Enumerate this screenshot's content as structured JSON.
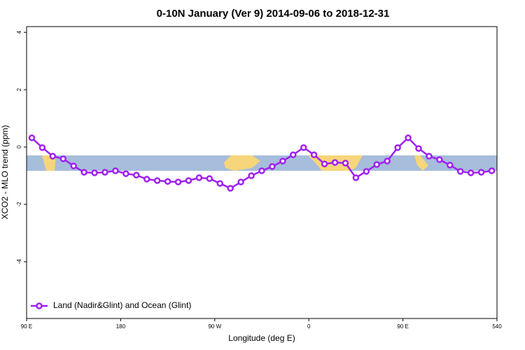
{
  "chart_data": {
    "type": "line",
    "title": "0-10N January (Ver 9)   2014-09-06 to 2018-12-31",
    "x_label": "Longitude (deg E)",
    "y_label": "XCO2 - MLO trend (ppm)",
    "x": [
      95,
      105,
      115,
      125,
      135,
      145,
      155,
      165,
      175,
      185,
      195,
      205,
      215,
      225,
      235,
      245,
      255,
      265,
      275,
      285,
      295,
      305,
      315,
      325,
      335,
      345,
      355,
      365,
      375,
      385,
      395,
      405,
      415,
      425,
      435,
      445,
      455,
      465,
      475,
      485,
      495,
      505,
      515,
      525,
      535
    ],
    "series": [
      {
        "name": "Land (Nadir&Glint) and Ocean (Glint)",
        "color": "#a020f0",
        "values": [
          0.32,
          -0.02,
          -0.32,
          -0.41,
          -0.66,
          -0.88,
          -0.9,
          -0.88,
          -0.83,
          -0.93,
          -0.98,
          -1.12,
          -1.17,
          -1.2,
          -1.22,
          -1.17,
          -1.07,
          -1.1,
          -1.27,
          -1.44,
          -1.22,
          -1.0,
          -0.83,
          -0.68,
          -0.49,
          -0.27,
          -0.02,
          -0.27,
          -0.59,
          -0.54,
          -0.56,
          -1.07,
          -0.85,
          -0.61,
          -0.49,
          -0.02,
          0.32,
          -0.05,
          -0.32,
          -0.44,
          -0.63,
          -0.85,
          -0.9,
          -0.88,
          -0.83
        ]
      }
    ],
    "xlim": [
      90,
      540
    ],
    "ylim": [
      -5.98,
      4.2
    ],
    "xticks": [
      {
        "value": 90,
        "label": "90 E"
      },
      180,
      {
        "value": 270,
        "label": "90 W"
      },
      {
        "value": 360,
        "label": "0"
      },
      {
        "value": 450,
        "label": "90 E"
      },
      540
    ],
    "yticks": [
      -4,
      -2,
      0,
      2,
      4
    ],
    "legend": "bottom-left",
    "grid": false
  }
}
